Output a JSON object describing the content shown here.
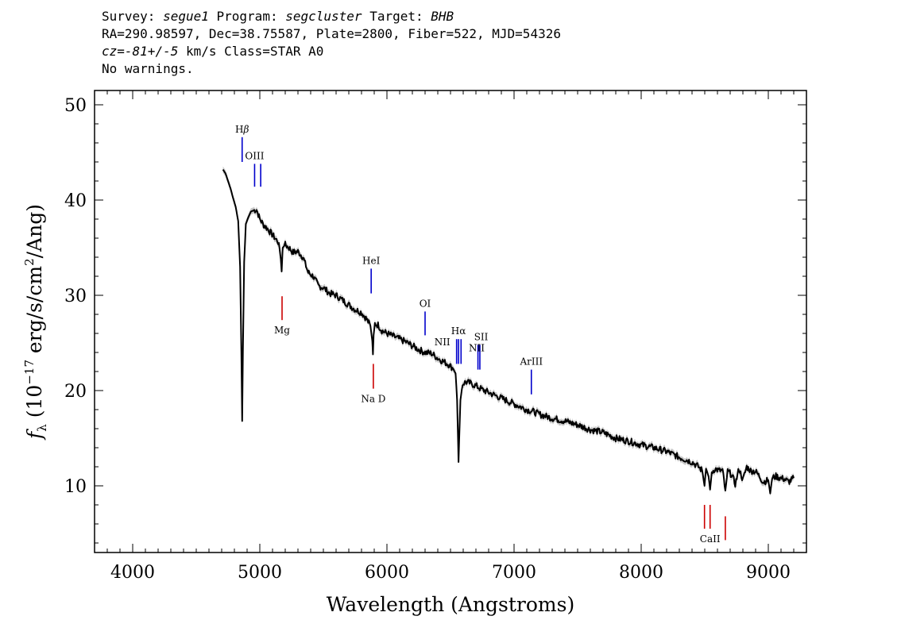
{
  "header": {
    "line1": {
      "survey_label": "Survey:",
      "survey": "segue1",
      "program_label": "Program:",
      "program": "segcluster",
      "target_label": "Target:",
      "target": "BHB"
    },
    "line2": "RA=290.98597, Dec=38.75587, Plate=2800, Fiber=522, MJD=54326",
    "line3": {
      "cz_label": "cz=",
      "cz": "-81+/-5",
      "rest": " km/s Class=STAR A0"
    },
    "line4": "No warnings."
  },
  "chart_data": {
    "type": "line",
    "xlabel": "Wavelength (Angstroms)",
    "ylabel": "f_λ (10^-17 erg/s/cm^2/Ang)",
    "ylabel_parts": {
      "symbol": "f",
      "subscript": "λ",
      "open": "(10",
      "exp1": "−17",
      "mid": " erg/s/cm",
      "exp2": "2",
      "close": "/Ang)"
    },
    "xlim": [
      3700,
      9300
    ],
    "ylim": [
      3,
      51.5
    ],
    "x_ticks": [
      4000,
      5000,
      6000,
      7000,
      8000,
      9000
    ],
    "y_ticks": [
      10,
      20,
      30,
      40,
      50
    ],
    "series": [
      {
        "style": "black",
        "x": [
          4710,
          4730,
          4750,
          4770,
          4790,
          4810,
          4830,
          4845,
          4855,
          4861,
          4867,
          4877,
          4890,
          4910,
          4930,
          4950,
          4975,
          5000,
          5030,
          5060,
          5090,
          5120,
          5150,
          5165,
          5172,
          5180,
          5200,
          5230,
          5260,
          5300,
          5340,
          5380,
          5420,
          5460,
          5500,
          5550,
          5600,
          5650,
          5700,
          5750,
          5800,
          5840,
          5870,
          5885,
          5890,
          5895,
          5905,
          5930,
          5960,
          6000,
          6050,
          6100,
          6150,
          6200,
          6250,
          6300,
          6350,
          6400,
          6450,
          6490,
          6520,
          6540,
          6552,
          6560,
          6563,
          6568,
          6578,
          6595,
          6620,
          6650,
          6700,
          6750,
          6800,
          6850,
          6900,
          6950,
          7000,
          7050,
          7100,
          7150,
          7200,
          7300,
          7400,
          7500,
          7600,
          7700,
          7800,
          7900,
          8000,
          8100,
          8200,
          8300,
          8400,
          8450,
          8480,
          8498,
          8510,
          8530,
          8542,
          8555,
          8580,
          8610,
          8640,
          8662,
          8680,
          8710,
          8740,
          8770,
          8800,
          8830,
          8860,
          8900,
          8930,
          8960,
          9000,
          9015,
          9030,
          9060,
          9100,
          9130,
          9160,
          9200
        ],
        "y": [
          43.2,
          42.8,
          42.0,
          41.2,
          40.2,
          39.3,
          37.8,
          33.0,
          24.0,
          16.8,
          24.0,
          33.5,
          37.5,
          38.2,
          38.8,
          38.9,
          39.0,
          38.0,
          37.4,
          37.0,
          36.5,
          36.0,
          35.5,
          33.8,
          32.5,
          35.0,
          35.3,
          35.0,
          34.5,
          34.6,
          34.0,
          32.4,
          32.0,
          31.0,
          30.8,
          30.2,
          30.0,
          29.5,
          29.0,
          28.5,
          28.2,
          27.5,
          26.8,
          25.2,
          23.8,
          25.8,
          27.0,
          26.9,
          26.3,
          26.0,
          25.7,
          25.4,
          25.1,
          24.7,
          24.3,
          24.0,
          23.9,
          23.4,
          23.0,
          22.7,
          22.3,
          21.8,
          19.0,
          14.5,
          12.5,
          14.8,
          19.0,
          20.7,
          20.9,
          20.8,
          20.5,
          20.1,
          19.8,
          19.5,
          19.2,
          18.9,
          18.6,
          18.3,
          18.0,
          17.8,
          17.5,
          17.1,
          16.8,
          16.4,
          15.9,
          15.6,
          15.0,
          14.7,
          14.3,
          14.0,
          13.6,
          13.0,
          12.5,
          12.0,
          11.6,
          10.0,
          11.8,
          11.0,
          9.6,
          11.4,
          11.8,
          11.6,
          11.6,
          9.5,
          11.5,
          11.2,
          10.2,
          11.8,
          10.6,
          12.0,
          11.6,
          11.5,
          11.0,
          10.4,
          10.6,
          9.2,
          10.8,
          11.0,
          10.8,
          10.7,
          10.4,
          10.8
        ]
      }
    ],
    "line_markers": [
      {
        "label": "Hβ",
        "label_parts": [
          "H",
          "β"
        ],
        "x": 4861,
        "y_top": 46.6,
        "y_bottom": 44.0,
        "color": "#0000cc",
        "label_pos": "above"
      },
      {
        "label": "OIII",
        "x": 4959,
        "y_top": 43.8,
        "y_bottom": 41.4,
        "color": "#0000cc",
        "label_pos": "above"
      },
      {
        "label": "",
        "x": 5007,
        "y_top": 43.8,
        "y_bottom": 41.4,
        "color": "#0000cc",
        "label_pos": "none"
      },
      {
        "label": "Mg",
        "x": 5175,
        "y_top": 29.9,
        "y_bottom": 27.4,
        "color": "#cc0000",
        "label_pos": "below"
      },
      {
        "label": "HeI",
        "x": 5876,
        "y_top": 32.8,
        "y_bottom": 30.2,
        "color": "#0000cc",
        "label_pos": "above"
      },
      {
        "label": "Na D",
        "x": 5893,
        "y_top": 22.8,
        "y_bottom": 20.2,
        "color": "#cc0000",
        "label_pos": "below"
      },
      {
        "label": "OI",
        "x": 6300,
        "y_top": 28.3,
        "y_bottom": 25.8,
        "color": "#0000cc",
        "label_pos": "above"
      },
      {
        "label": "NII",
        "x": 6548,
        "y_top": 25.4,
        "y_bottom": 22.8,
        "color": "#0000cc",
        "label_pos": "left"
      },
      {
        "label": "Hα",
        "x": 6563,
        "y_top": 25.4,
        "y_bottom": 22.8,
        "color": "#0000cc",
        "label_pos": "above"
      },
      {
        "label": "",
        "x": 6583,
        "y_top": 25.4,
        "y_bottom": 22.8,
        "color": "#0000cc",
        "label_pos": "none"
      },
      {
        "label": "SII",
        "x": 6716,
        "y_top": 24.8,
        "y_bottom": 22.2,
        "color": "#0000cc",
        "label_pos": "above"
      },
      {
        "label": "NII",
        "x": 6731,
        "y_top": 24.8,
        "y_bottom": 22.2,
        "color": "#0000cc",
        "label_pos": "above"
      },
      {
        "label": "ArIII",
        "x": 7136,
        "y_top": 22.2,
        "y_bottom": 19.6,
        "color": "#0000cc",
        "label_pos": "above"
      },
      {
        "label": "",
        "x": 8498,
        "y_top": 8.0,
        "y_bottom": 5.5,
        "color": "#cc0000",
        "label_pos": "none"
      },
      {
        "label": "CaII",
        "x": 8542,
        "y_top": 8.0,
        "y_bottom": 5.5,
        "color": "#cc0000",
        "label_pos": "below"
      },
      {
        "label": "",
        "x": 8662,
        "y_top": 6.8,
        "y_bottom": 4.3,
        "color": "#cc0000",
        "label_pos": "none"
      }
    ]
  }
}
